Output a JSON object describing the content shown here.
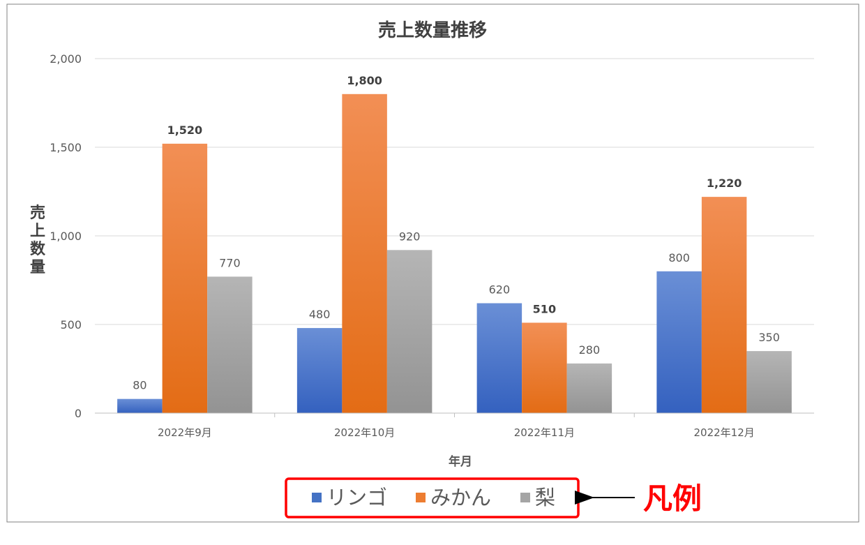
{
  "chart_data": {
    "type": "bar",
    "title": "売上数量推移",
    "xlabel": "年月",
    "ylabel": "売上数量",
    "categories": [
      "2022年9月",
      "2022年10月",
      "2022年11月",
      "2022年12月"
    ],
    "series": [
      {
        "name": "リンゴ",
        "values": [
          80,
          480,
          620,
          800
        ],
        "color": "#4472c4",
        "label_bold": false
      },
      {
        "name": "みかん",
        "values": [
          1520,
          1800,
          510,
          1220
        ],
        "color": "#ed7d31",
        "label_bold": true
      },
      {
        "name": "梨",
        "values": [
          770,
          920,
          280,
          350
        ],
        "color": "#a5a5a5",
        "label_bold": false
      }
    ],
    "value_labels": {
      "リンゴ": [
        "80",
        "480",
        "620",
        "800"
      ],
      "みかん": [
        "1,520",
        "1,800",
        "510",
        "1,220"
      ],
      "梨": [
        "770",
        "920",
        "280",
        "350"
      ]
    },
    "ylim": [
      0,
      2000
    ],
    "yticks": [
      0,
      500,
      1000,
      1500,
      2000
    ],
    "ytick_labels": [
      "0",
      "500",
      "1,000",
      "1,500",
      "2,000"
    ],
    "grid": true,
    "legend_position": "bottom"
  },
  "annotation": {
    "text": "凡例",
    "color": "#ff0000"
  },
  "colors": {
    "highlight_box": "#ff0000",
    "axis_text": "#595959",
    "title_text": "#404040",
    "gridline": "#d9d9d9",
    "border": "#808080"
  }
}
